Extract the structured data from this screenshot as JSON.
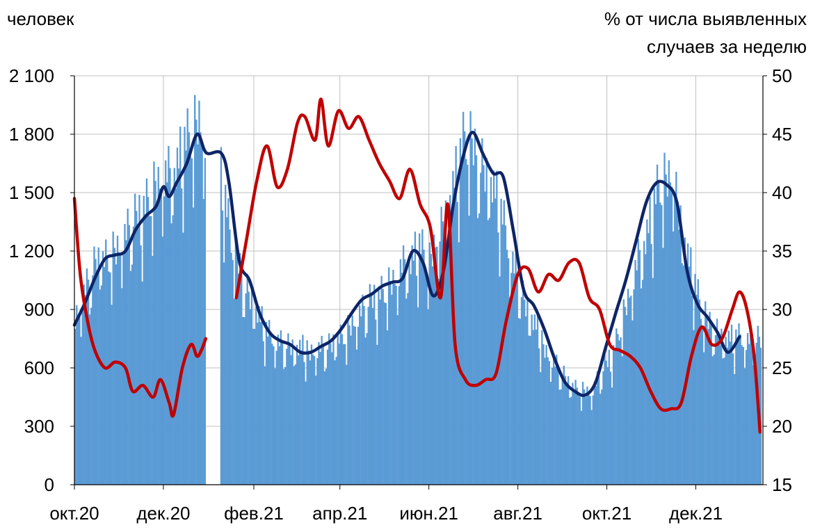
{
  "chart_data": {
    "type": "bar+line",
    "left_axis_title": "человек",
    "right_axis_title_lines": [
      "% от числа выявленных",
      "случаев за неделю"
    ],
    "y_left": {
      "min": 0,
      "max": 2100,
      "ticks": [
        0,
        300,
        600,
        900,
        1200,
        1500,
        1800,
        2100
      ],
      "tick_labels": [
        "0",
        "300",
        "600",
        "900",
        "1 200",
        "1 500",
        "1 800",
        "2 100"
      ]
    },
    "y_right": {
      "min": 15,
      "max": 50,
      "ticks": [
        15,
        20,
        25,
        30,
        35,
        40,
        45,
        50
      ],
      "tick_labels": [
        "15",
        "20",
        "25",
        "30",
        "35",
        "40",
        "45",
        "50"
      ]
    },
    "x_axis": {
      "start": "2020-10-01",
      "end": "2021-12-31",
      "tick_dates": [
        "2020-10-01",
        "2020-12-01",
        "2021-02-01",
        "2021-04-01",
        "2021-06-01",
        "2021-08-01",
        "2021-10-01",
        "2021-12-01"
      ],
      "tick_labels": [
        "окт.20",
        "дек.20",
        "фев.21",
        "апр.21",
        "июн.21",
        "авг.21",
        "окт.21",
        "дек.21"
      ],
      "gap": [
        "2020-12-30",
        "2021-01-09"
      ]
    },
    "grid": true,
    "colors": {
      "bars": "#5b9bd5",
      "line_left": "#0e2566",
      "line_right": "#c00000",
      "grid": "#bfbfbf"
    },
    "bars_daily": [
      {
        "date": "2020-10-01",
        "value": 880
      },
      {
        "date": "2020-10-15",
        "value": 1150
      },
      {
        "date": "2020-11-01",
        "value": 1250
      },
      {
        "date": "2020-11-15",
        "value": 1420
      },
      {
        "date": "2020-11-25",
        "value": 1560
      },
      {
        "date": "2020-12-05",
        "value": 1600
      },
      {
        "date": "2020-12-15",
        "value": 1780
      },
      {
        "date": "2020-12-25",
        "value": 1880
      },
      {
        "date": "2020-12-29",
        "value": 1780
      },
      {
        "date": "2021-01-10",
        "value": 1600
      },
      {
        "date": "2021-01-15",
        "value": 1300
      },
      {
        "date": "2021-01-25",
        "value": 1050
      },
      {
        "date": "2021-02-10",
        "value": 780
      },
      {
        "date": "2021-02-25",
        "value": 720
      },
      {
        "date": "2021-03-10",
        "value": 700
      },
      {
        "date": "2021-03-25",
        "value": 720
      },
      {
        "date": "2021-04-10",
        "value": 850
      },
      {
        "date": "2021-04-25",
        "value": 980
      },
      {
        "date": "2021-05-10",
        "value": 1080
      },
      {
        "date": "2021-05-20",
        "value": 1200
      },
      {
        "date": "2021-05-25",
        "value": 1250
      },
      {
        "date": "2021-06-01",
        "value": 1150
      },
      {
        "date": "2021-06-15",
        "value": 1500
      },
      {
        "date": "2021-06-25",
        "value": 1800
      },
      {
        "date": "2021-07-05",
        "value": 1700
      },
      {
        "date": "2021-07-15",
        "value": 1550
      },
      {
        "date": "2021-07-25",
        "value": 1250
      },
      {
        "date": "2021-08-05",
        "value": 950
      },
      {
        "date": "2021-08-20",
        "value": 700
      },
      {
        "date": "2021-09-05",
        "value": 520
      },
      {
        "date": "2021-09-20",
        "value": 480
      },
      {
        "date": "2021-10-05",
        "value": 700
      },
      {
        "date": "2021-10-20",
        "value": 1100
      },
      {
        "date": "2021-11-05",
        "value": 1560
      },
      {
        "date": "2021-11-15",
        "value": 1600
      },
      {
        "date": "2021-11-25",
        "value": 1200
      },
      {
        "date": "2021-12-05",
        "value": 880
      },
      {
        "date": "2021-12-20",
        "value": 760
      },
      {
        "date": "2021-12-31",
        "value": 760
      }
    ],
    "series": [
      {
        "axis": "left",
        "style": "smoothed",
        "points": [
          [
            "2020-10-01",
            820
          ],
          [
            "2020-10-08",
            930
          ],
          [
            "2020-10-15",
            1060
          ],
          [
            "2020-10-22",
            1160
          ],
          [
            "2020-10-29",
            1180
          ],
          [
            "2020-11-05",
            1200
          ],
          [
            "2020-11-12",
            1310
          ],
          [
            "2020-11-19",
            1380
          ],
          [
            "2020-11-26",
            1430
          ],
          [
            "2020-12-01",
            1530
          ],
          [
            "2020-12-05",
            1480
          ],
          [
            "2020-12-10",
            1550
          ],
          [
            "2020-12-17",
            1650
          ],
          [
            "2020-12-24",
            1800
          ],
          [
            "2020-12-29",
            1720
          ],
          [
            "2021-01-01",
            1700
          ],
          [
            "2021-01-10",
            1700
          ],
          [
            "2021-01-15",
            1550
          ],
          [
            "2021-01-22",
            1150
          ],
          [
            "2021-01-29",
            1050
          ],
          [
            "2021-02-05",
            880
          ],
          [
            "2021-02-12",
            780
          ],
          [
            "2021-02-19",
            740
          ],
          [
            "2021-02-26",
            720
          ],
          [
            "2021-03-05",
            680
          ],
          [
            "2021-03-12",
            680
          ],
          [
            "2021-03-19",
            710
          ],
          [
            "2021-03-26",
            740
          ],
          [
            "2021-04-02",
            800
          ],
          [
            "2021-04-09",
            880
          ],
          [
            "2021-04-16",
            950
          ],
          [
            "2021-04-23",
            980
          ],
          [
            "2021-04-30",
            1020
          ],
          [
            "2021-05-07",
            1040
          ],
          [
            "2021-05-14",
            1060
          ],
          [
            "2021-05-21",
            1200
          ],
          [
            "2021-05-28",
            1140
          ],
          [
            "2021-06-04",
            970
          ],
          [
            "2021-06-11",
            1100
          ],
          [
            "2021-06-18",
            1450
          ],
          [
            "2021-06-25",
            1700
          ],
          [
            "2021-07-01",
            1810
          ],
          [
            "2021-07-08",
            1700
          ],
          [
            "2021-07-15",
            1600
          ],
          [
            "2021-07-22",
            1580
          ],
          [
            "2021-07-29",
            1300
          ],
          [
            "2021-08-05",
            1000
          ],
          [
            "2021-08-12",
            920
          ],
          [
            "2021-08-19",
            800
          ],
          [
            "2021-08-26",
            650
          ],
          [
            "2021-09-02",
            530
          ],
          [
            "2021-09-09",
            480
          ],
          [
            "2021-09-16",
            460
          ],
          [
            "2021-09-23",
            520
          ],
          [
            "2021-09-30",
            700
          ],
          [
            "2021-10-07",
            880
          ],
          [
            "2021-10-14",
            1050
          ],
          [
            "2021-10-21",
            1250
          ],
          [
            "2021-10-28",
            1450
          ],
          [
            "2021-11-04",
            1550
          ],
          [
            "2021-11-11",
            1540
          ],
          [
            "2021-11-18",
            1450
          ],
          [
            "2021-11-25",
            1100
          ],
          [
            "2021-12-02",
            930
          ],
          [
            "2021-12-09",
            860
          ],
          [
            "2021-12-16",
            780
          ],
          [
            "2021-12-23",
            680
          ],
          [
            "2021-12-31",
            760
          ]
        ]
      },
      {
        "axis": "right",
        "style": "smoothed",
        "points": [
          [
            "2020-10-01",
            39.5
          ],
          [
            "2020-10-05",
            33
          ],
          [
            "2020-10-10",
            29
          ],
          [
            "2020-10-15",
            26.5
          ],
          [
            "2020-10-22",
            25
          ],
          [
            "2020-10-29",
            25.5
          ],
          [
            "2020-11-05",
            25
          ],
          [
            "2020-11-10",
            23
          ],
          [
            "2020-11-17",
            23.5
          ],
          [
            "2020-11-24",
            22.5
          ],
          [
            "2020-11-29",
            24
          ],
          [
            "2020-12-05",
            22
          ],
          [
            "2020-12-08",
            21
          ],
          [
            "2020-12-14",
            25
          ],
          [
            "2020-12-20",
            27
          ],
          [
            "2020-12-24",
            26
          ],
          [
            "2020-12-27",
            26.5
          ],
          [
            "2020-12-30",
            27.5
          ],
          null,
          [
            "2021-01-20",
            31
          ],
          [
            "2021-01-27",
            36
          ],
          [
            "2021-02-03",
            41
          ],
          [
            "2021-02-10",
            44
          ],
          [
            "2021-02-17",
            40.5
          ],
          [
            "2021-02-24",
            42
          ],
          [
            "2021-03-03",
            46
          ],
          [
            "2021-03-08",
            46.5
          ],
          [
            "2021-03-15",
            44.5
          ],
          [
            "2021-03-19",
            48
          ],
          [
            "2021-03-24",
            44
          ],
          [
            "2021-03-31",
            47
          ],
          [
            "2021-04-07",
            45.5
          ],
          [
            "2021-04-14",
            46.5
          ],
          [
            "2021-04-21",
            44.5
          ],
          [
            "2021-04-28",
            42.5
          ],
          [
            "2021-05-05",
            41
          ],
          [
            "2021-05-12",
            39.5
          ],
          [
            "2021-05-19",
            42
          ],
          [
            "2021-05-26",
            39
          ],
          [
            "2021-06-02",
            37
          ],
          [
            "2021-06-09",
            31
          ],
          [
            "2021-06-14",
            39
          ],
          [
            "2021-06-19",
            27
          ],
          [
            "2021-06-26",
            24
          ],
          [
            "2021-07-03",
            23.5
          ],
          [
            "2021-07-10",
            24
          ],
          [
            "2021-07-17",
            24.5
          ],
          [
            "2021-07-24",
            29
          ],
          [
            "2021-08-01",
            33
          ],
          [
            "2021-08-08",
            33.5
          ],
          [
            "2021-08-15",
            31.5
          ],
          [
            "2021-08-22",
            33
          ],
          [
            "2021-08-29",
            32.5
          ],
          [
            "2021-09-05",
            34
          ],
          [
            "2021-09-12",
            34
          ],
          [
            "2021-09-19",
            31
          ],
          [
            "2021-09-26",
            30
          ],
          [
            "2021-10-03",
            27
          ],
          [
            "2021-10-10",
            26.5
          ],
          [
            "2021-10-17",
            26
          ],
          [
            "2021-10-24",
            25
          ],
          [
            "2021-10-31",
            23
          ],
          [
            "2021-11-07",
            21.5
          ],
          [
            "2021-11-14",
            21.5
          ],
          [
            "2021-11-21",
            22
          ],
          [
            "2021-11-28",
            26
          ],
          [
            "2021-12-05",
            28.5
          ],
          [
            "2021-12-12",
            27
          ],
          [
            "2021-12-19",
            27.5
          ],
          [
            "2021-12-26",
            30
          ],
          [
            "2021-12-31",
            31.5
          ],
          [
            "2022-01-05",
            30
          ],
          [
            "2022-01-10",
            26
          ],
          [
            "2022-01-14",
            19.5
          ]
        ]
      }
    ]
  }
}
